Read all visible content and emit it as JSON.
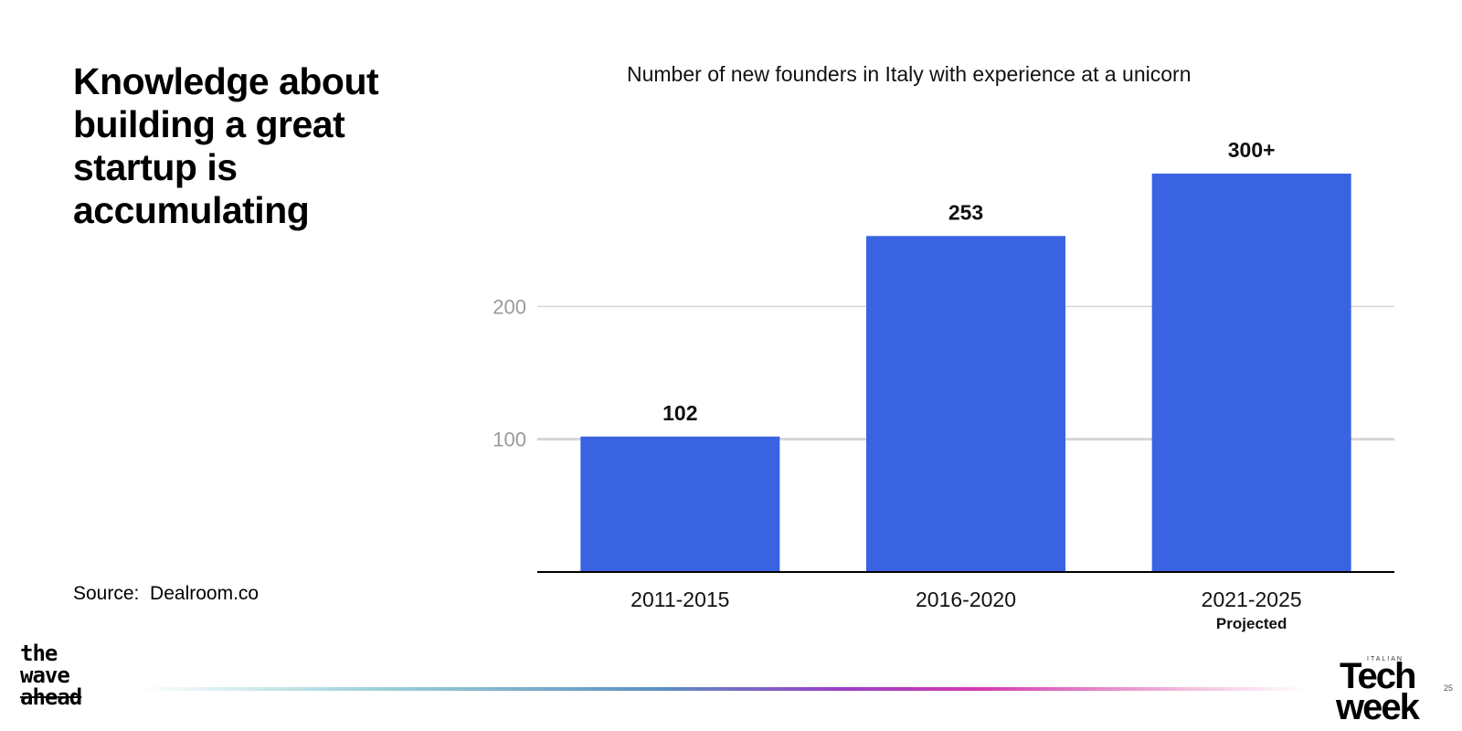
{
  "headline": "Knowledge about building a great startup is accumulating",
  "source": "Source:  Dealroom.co",
  "logos": {
    "left_lines": [
      "the",
      "wave",
      "ahead"
    ],
    "right_small": "ITALIAN",
    "right_line1": "Tech",
    "right_line2": "week",
    "page_number": "25"
  },
  "colors": {
    "bar": "#3a63e2",
    "grid": "#d6d6d6",
    "axis": "#000000",
    "tick": "#9a9a9a"
  },
  "chart_data": {
    "type": "bar",
    "title": "Number of new founders in Italy with experience at a unicorn",
    "categories": [
      "2011-2015",
      "2016-2020",
      "2021-2025"
    ],
    "category_sublabels": [
      "",
      "",
      "Projected"
    ],
    "values": [
      102,
      253,
      300
    ],
    "data_labels": [
      "102",
      "253",
      "300+"
    ],
    "yticks": [
      100,
      200
    ],
    "ylim": [
      0,
      300
    ],
    "xlabel": "",
    "ylabel": "",
    "grid": true
  }
}
